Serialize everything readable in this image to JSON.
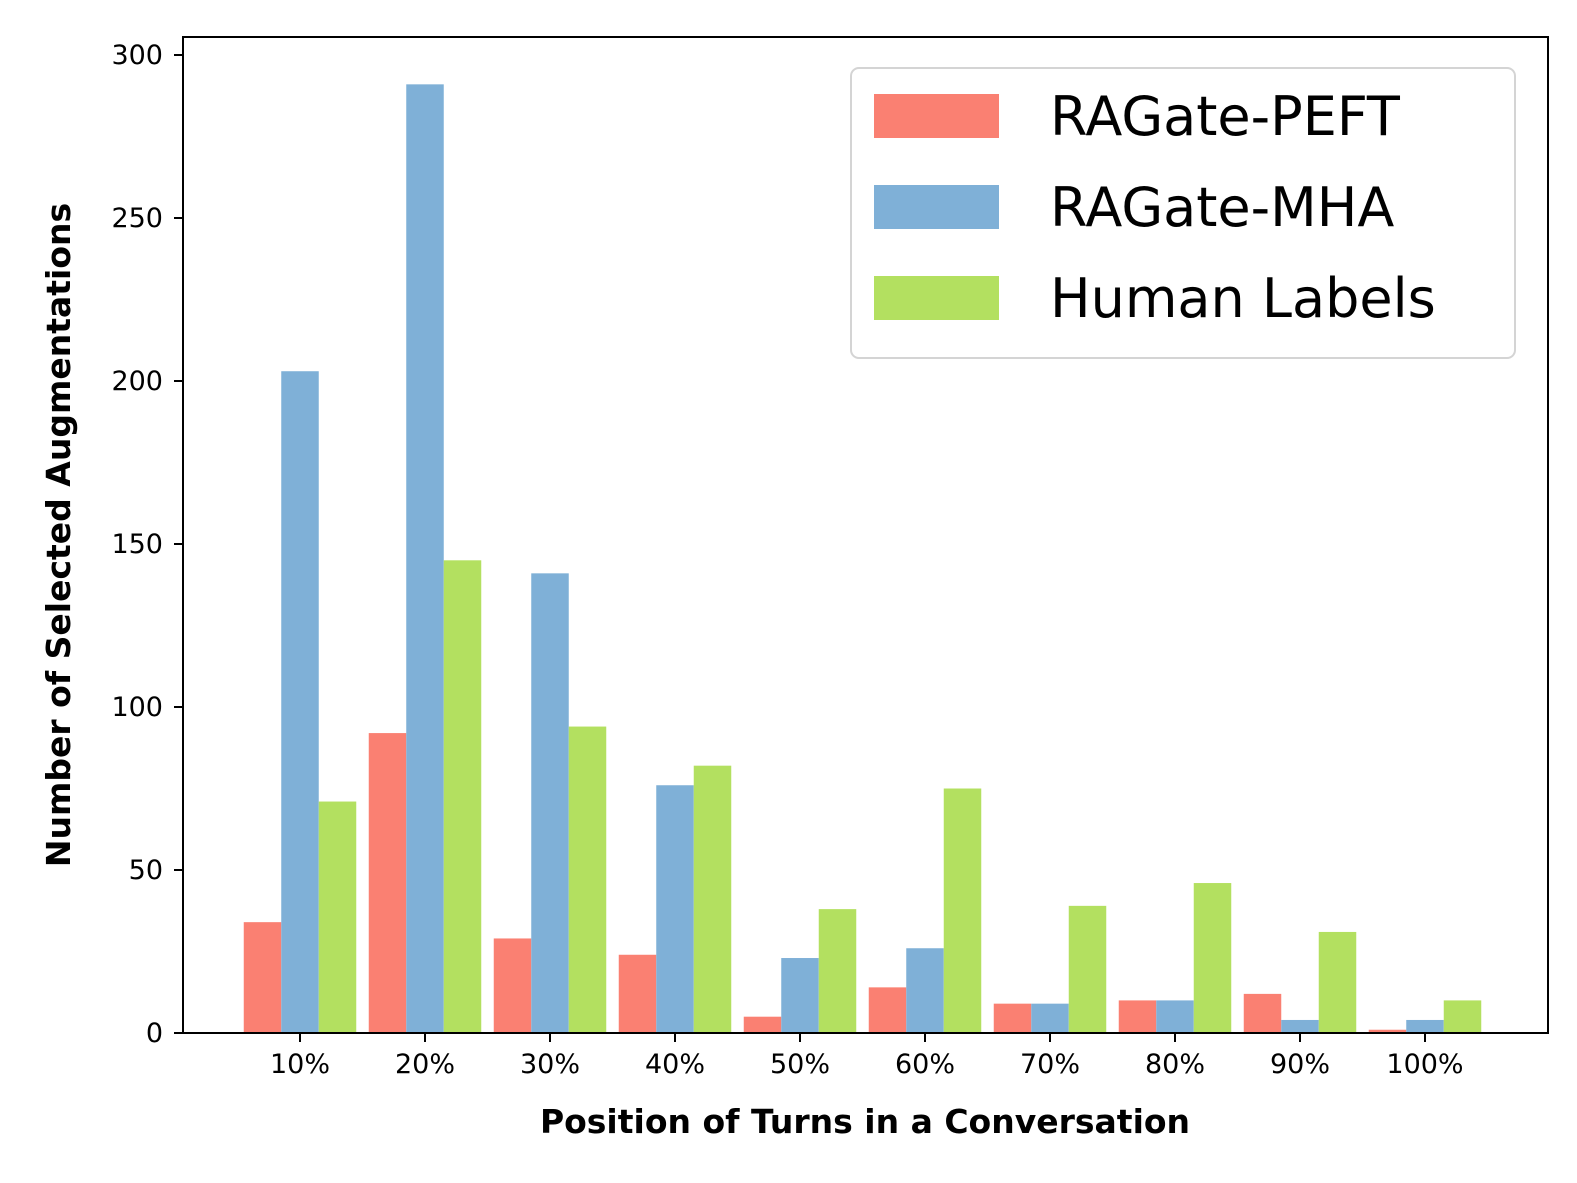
{
  "chart_data": {
    "type": "bar",
    "title": "",
    "xlabel": "Position of Turns in a Conversation",
    "ylabel": "Number of Selected Augmentations",
    "categories": [
      "10%",
      "20%",
      "30%",
      "40%",
      "50%",
      "60%",
      "70%",
      "80%",
      "90%",
      "100%"
    ],
    "series": [
      {
        "name": "RAGate-PEFT",
        "color": "#fa8072",
        "values": [
          34,
          92,
          29,
          24,
          5,
          14,
          9,
          10,
          12,
          1
        ]
      },
      {
        "name": "RAGate-MHA",
        "color": "#7fb0d7",
        "values": [
          203,
          291,
          141,
          76,
          23,
          26,
          9,
          10,
          4,
          4
        ]
      },
      {
        "name": "Human Labels",
        "color": "#b3e060",
        "values": [
          71,
          145,
          94,
          82,
          38,
          75,
          39,
          46,
          31,
          10
        ]
      }
    ],
    "ylim": [
      0,
      305
    ],
    "yticks": [
      0,
      50,
      100,
      150,
      200,
      250,
      300
    ],
    "grid": false,
    "legend_position": "top-right"
  }
}
